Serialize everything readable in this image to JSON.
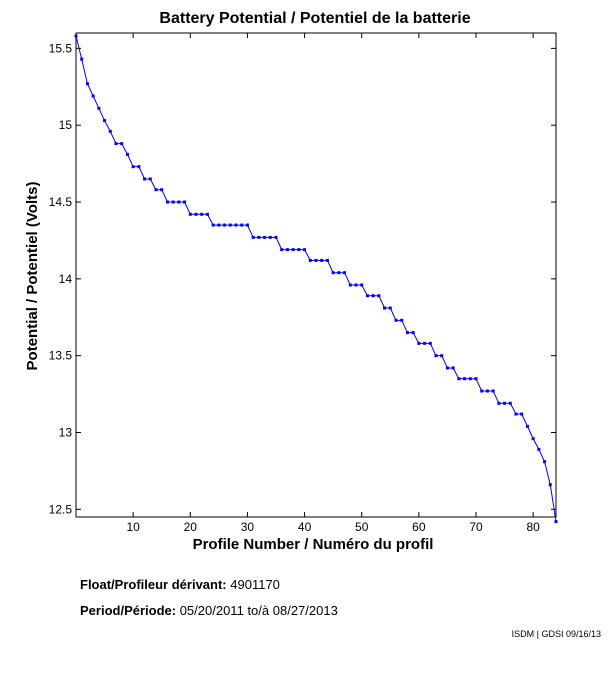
{
  "chart_data": {
    "type": "line",
    "title": "Battery Potential / Potentiel de la batterie",
    "xlabel": "Profile Number / Numéro du profil",
    "ylabel": "Potential / Potentiel (Volts)",
    "xlim": [
      0,
      84
    ],
    "ylim": [
      12.45,
      15.6
    ],
    "xticks": [
      10,
      20,
      30,
      40,
      50,
      60,
      70,
      80
    ],
    "yticks": [
      12.5,
      13,
      13.5,
      14,
      14.5,
      15,
      15.5
    ],
    "grid": false,
    "color": "#0000ff",
    "series": [
      {
        "x": [
          0,
          1,
          2,
          3,
          4,
          5,
          6,
          7,
          8,
          9,
          10,
          11,
          12,
          13,
          14,
          15,
          16,
          17,
          18,
          19,
          20,
          21,
          22,
          23,
          24,
          25,
          26,
          27,
          28,
          29,
          30,
          31,
          32,
          33,
          34,
          35,
          36,
          37,
          38,
          39,
          40,
          41,
          42,
          43,
          44,
          45,
          46,
          47,
          48,
          49,
          50,
          51,
          52,
          53,
          54,
          55,
          56,
          57,
          58,
          59,
          60,
          61,
          62,
          63,
          64,
          65,
          66,
          67,
          68,
          69,
          70,
          71,
          72,
          73,
          74,
          75,
          76,
          77,
          78,
          79,
          80,
          81,
          82,
          83,
          84
        ],
        "values": [
          15.58,
          15.43,
          15.27,
          15.19,
          15.11,
          15.03,
          14.96,
          14.88,
          14.88,
          14.81,
          14.73,
          14.73,
          14.65,
          14.65,
          14.58,
          14.58,
          14.5,
          14.5,
          14.5,
          14.5,
          14.42,
          14.42,
          14.42,
          14.42,
          14.35,
          14.35,
          14.35,
          14.35,
          14.35,
          14.35,
          14.35,
          14.27,
          14.27,
          14.27,
          14.27,
          14.27,
          14.19,
          14.19,
          14.19,
          14.19,
          14.19,
          14.12,
          14.12,
          14.12,
          14.12,
          14.04,
          14.04,
          14.04,
          13.96,
          13.96,
          13.96,
          13.89,
          13.89,
          13.89,
          13.81,
          13.81,
          13.73,
          13.73,
          13.65,
          13.65,
          13.58,
          13.58,
          13.58,
          13.5,
          13.5,
          13.42,
          13.42,
          13.35,
          13.35,
          13.35,
          13.35,
          13.27,
          13.27,
          13.27,
          13.19,
          13.19,
          13.19,
          13.12,
          13.12,
          13.04,
          12.96,
          12.89,
          12.81,
          12.66,
          12.42
        ]
      }
    ]
  },
  "info": {
    "float_label": "Float/Profileur dérivant:",
    "float_value": "4901170",
    "period_label": "Period/Période:",
    "period_start": "05/20/2011",
    "period_sep": "to/à",
    "period_end": "08/27/2013",
    "credit": "ISDM | GDSI 09/16/13"
  }
}
